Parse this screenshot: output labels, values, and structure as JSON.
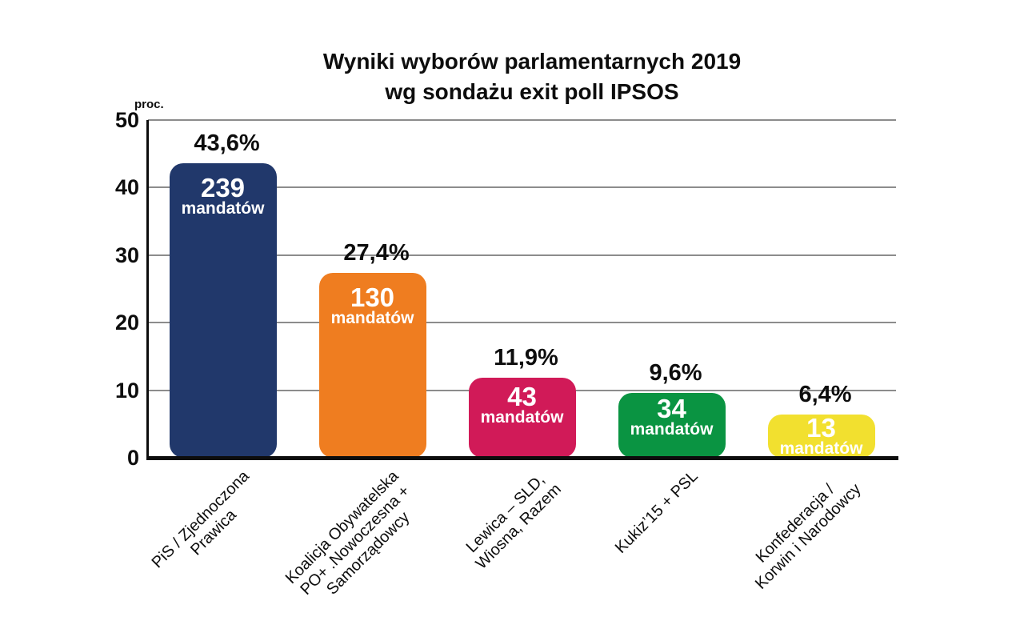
{
  "title": {
    "line1": "Wyniki wyborów parlamentarnych 2019",
    "line2": "wg sondażu exit poll IPSOS"
  },
  "chart_data": {
    "type": "bar",
    "title": "Wyniki wyborów parlamentarnych 2019 wg sondażu exit poll IPSOS",
    "xlabel": "",
    "ylabel": "proc.",
    "ylim": [
      0,
      50
    ],
    "yticks": [
      0,
      10,
      20,
      30,
      40,
      50
    ],
    "grid": true,
    "legend": "none",
    "categories": [
      "PiS / Zjednoczona Prawica",
      "Koalicja Obywatelska PO+ .Nowoczesna + Samorządowcy",
      "Lewica – SLD, Wiosna, Razem",
      "Kukiz’15 + PSL",
      "Konfederacja / Korwin i Narodowcy"
    ],
    "values": [
      43.6,
      27.4,
      11.9,
      9.6,
      6.4
    ],
    "seat_counts": [
      239,
      130,
      43,
      34,
      13
    ],
    "bars": [
      {
        "label_lines": [
          "PiS / Zjednoczona",
          "Prawica"
        ],
        "percent": 43.6,
        "percent_label": "43,6%",
        "seats": "239",
        "seats_word": "mandatów",
        "color": "#21386B"
      },
      {
        "label_lines": [
          "Koalicja Obywatelska",
          "PO+ .Nowoczesna +",
          "Samorządowcy"
        ],
        "percent": 27.4,
        "percent_label": "27,4%",
        "seats": "130",
        "seats_word": "mandatów",
        "color": "#EF7D20"
      },
      {
        "label_lines": [
          "Lewica – SLD,",
          "Wiosna, Razem"
        ],
        "percent": 11.9,
        "percent_label": "11,9%",
        "seats": "43",
        "seats_word": "mandatów",
        "color": "#D11A58"
      },
      {
        "label_lines": [
          "Kukiz’15 + PSL"
        ],
        "percent": 9.6,
        "percent_label": "9,6%",
        "seats": "34",
        "seats_word": "mandatów",
        "color": "#0A9442"
      },
      {
        "label_lines": [
          "Konfederacja /",
          "Korwin i Narodowcy"
        ],
        "percent": 6.4,
        "percent_label": "6,4%",
        "seats": "13",
        "seats_word": "mandatów",
        "color": "#F2E02F"
      }
    ]
  }
}
